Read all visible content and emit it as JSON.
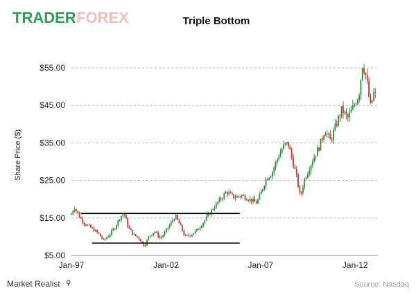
{
  "brand": {
    "logo_part1": "TRADER",
    "logo_part2": "FOREX",
    "footer_logo": "Market Realist",
    "logo_green": "#2e9e57",
    "logo_red": "#d94a3b"
  },
  "chart_data": {
    "type": "candlestick",
    "title": "Triple Bottom",
    "ylabel": "Share Price ($)",
    "source": "Source: Nasdaq",
    "ylim": [
      5,
      58
    ],
    "yticks": [
      {
        "value": 55,
        "label": "$55.00"
      },
      {
        "value": 45,
        "label": "$45.00"
      },
      {
        "value": 35,
        "label": "$35.00"
      },
      {
        "value": 25,
        "label": "$25.00"
      },
      {
        "value": 15,
        "label": "$15.00"
      },
      {
        "value": 5,
        "label": "$5.00"
      }
    ],
    "xlim": [
      1997.0,
      2013.2
    ],
    "xticks": [
      {
        "value": 1997.0,
        "label": "Jan-97"
      },
      {
        "value": 2002.0,
        "label": "Jan-02"
      },
      {
        "value": 2007.0,
        "label": "Jan-07"
      },
      {
        "value": 2012.0,
        "label": "Jan-12"
      }
    ],
    "grid": true,
    "up_color": "#2e8b3a",
    "down_color": "#c0392b",
    "price_path": [
      [
        1997.0,
        16.0
      ],
      [
        1997.15,
        18.0
      ],
      [
        1997.4,
        15.5
      ],
      [
        1997.7,
        13.5
      ],
      [
        1998.0,
        12.5
      ],
      [
        1998.4,
        11.0
      ],
      [
        1998.7,
        9.0
      ],
      [
        1999.0,
        10.5
      ],
      [
        1999.3,
        12.5
      ],
      [
        1999.6,
        15.5
      ],
      [
        1999.8,
        16.0
      ],
      [
        2000.0,
        12.5
      ],
      [
        2000.3,
        10.5
      ],
      [
        2000.6,
        9.5
      ],
      [
        2000.85,
        7.5
      ],
      [
        2001.1,
        10.0
      ],
      [
        2001.4,
        11.5
      ],
      [
        2001.7,
        9.5
      ],
      [
        2002.0,
        11.5
      ],
      [
        2002.3,
        14.0
      ],
      [
        2002.5,
        15.5
      ],
      [
        2002.8,
        12.5
      ],
      [
        2003.0,
        10.0
      ],
      [
        2003.3,
        10.5
      ],
      [
        2003.6,
        11.5
      ],
      [
        2004.0,
        14.0
      ],
      [
        2004.4,
        17.0
      ],
      [
        2004.8,
        19.5
      ],
      [
        2005.2,
        22.0
      ],
      [
        2005.6,
        20.5
      ],
      [
        2006.0,
        21.0
      ],
      [
        2006.4,
        20.0
      ],
      [
        2006.8,
        19.0
      ],
      [
        2007.0,
        21.5
      ],
      [
        2007.3,
        25.5
      ],
      [
        2007.6,
        27.0
      ],
      [
        2007.9,
        31.0
      ],
      [
        2008.2,
        34.0
      ],
      [
        2008.45,
        35.0
      ],
      [
        2008.7,
        30.0
      ],
      [
        2008.9,
        26.0
      ],
      [
        2009.1,
        20.5
      ],
      [
        2009.3,
        25.0
      ],
      [
        2009.5,
        27.5
      ],
      [
        2009.8,
        31.0
      ],
      [
        2010.1,
        34.0
      ],
      [
        2010.4,
        38.5
      ],
      [
        2010.7,
        35.5
      ],
      [
        2011.0,
        40.0
      ],
      [
        2011.3,
        44.0
      ],
      [
        2011.6,
        41.5
      ],
      [
        2011.9,
        44.5
      ],
      [
        2012.2,
        48.0
      ],
      [
        2012.4,
        56.5
      ],
      [
        2012.6,
        52.0
      ],
      [
        2012.8,
        44.5
      ],
      [
        2013.0,
        48.5
      ],
      [
        2013.15,
        46.5
      ]
    ],
    "support_line": {
      "x": [
        1998.1,
        2005.9
      ],
      "y": 8.3
    },
    "resistance_line": {
      "x": [
        1997.5,
        2005.9
      ],
      "y": 16.2
    }
  }
}
